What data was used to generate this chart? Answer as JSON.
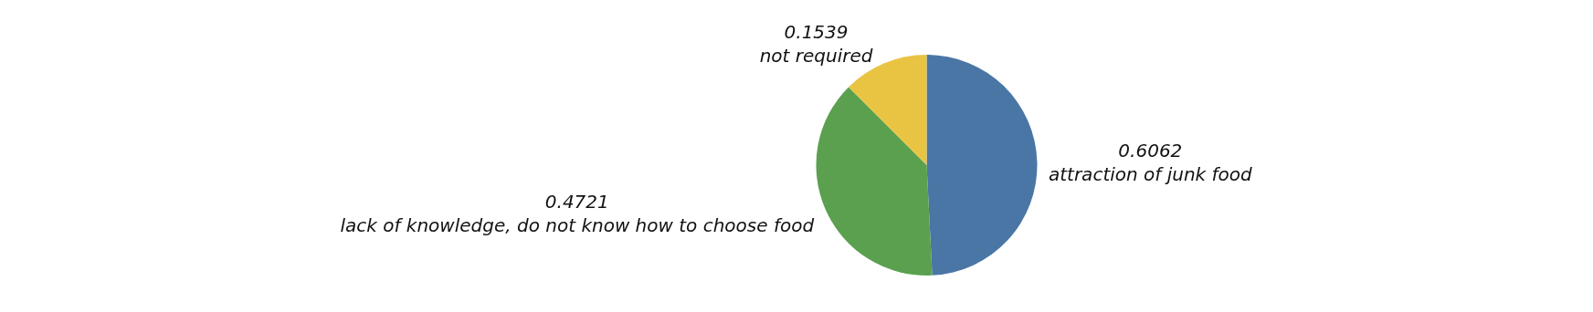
{
  "chart_data": {
    "type": "pie",
    "categories": [
      "attraction of junk food",
      "lack of knowledge, do not know how to choose food",
      "not required"
    ],
    "values": [
      0.6062,
      0.4721,
      0.1539
    ],
    "colors": [
      "#4a76a6",
      "#5aa04f",
      "#e9c443"
    ],
    "data_labels": true,
    "legend": false
  }
}
